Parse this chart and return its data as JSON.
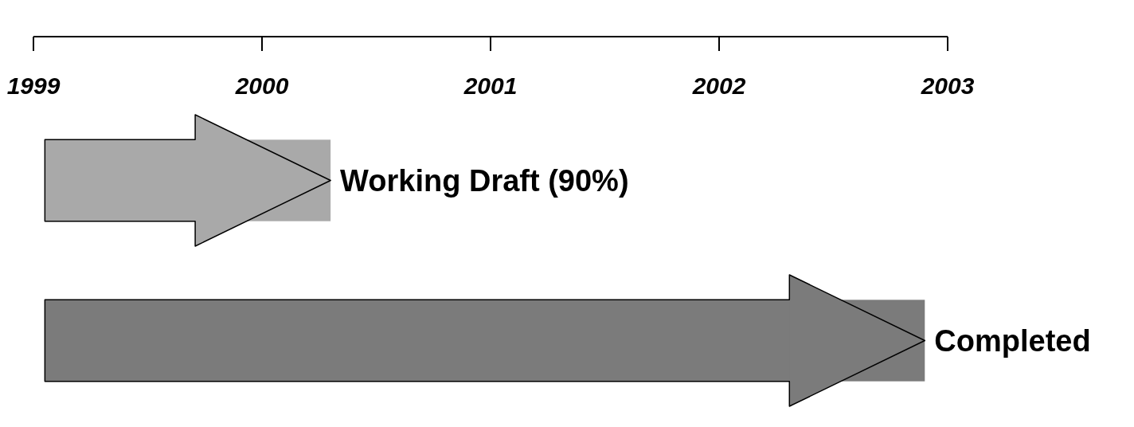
{
  "chart_data": {
    "type": "bar",
    "orientation": "horizontal",
    "categories": [
      null,
      null
    ],
    "base": [
      1999.05,
      1999.05
    ],
    "values": [
      1.25,
      3.85
    ],
    "colors": [
      "#a9a9a9",
      "#7b7b7b"
    ],
    "xlim": [
      1999,
      2003
    ],
    "xticks": [
      1999,
      2000,
      2001,
      2002,
      2003
    ],
    "tick_labels": "x",
    "annotations": [
      "Working Draft (90%)",
      "Completed"
    ]
  }
}
